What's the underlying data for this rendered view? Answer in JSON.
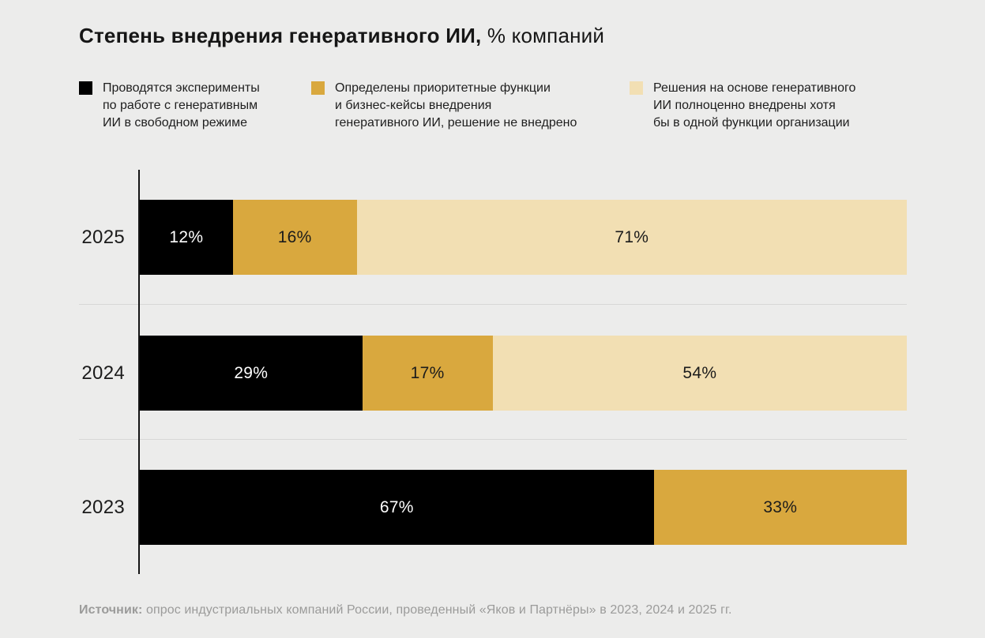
{
  "title": {
    "main": "Степень внедрения генеративного ИИ,",
    "suffix": " % компаний"
  },
  "legend": {
    "items": [
      {
        "color": "#000000",
        "lines": "Проводятся эксперименты\nпо работе с генеративным\nИИ в свободном режиме"
      },
      {
        "color": "#D9A83E",
        "lines": "Определены приоритетные функции\nи бизнес-кейсы внедрения\nгенеративного ИИ, решение не внедрено"
      },
      {
        "color": "#F2DFB3",
        "lines": "Решения на основе генеративного\nИИ полноценно внедрены хотя\nбы в одной функции организации"
      }
    ]
  },
  "chart_data": {
    "type": "bar",
    "orientation": "horizontal",
    "stacked": true,
    "unit": "%",
    "title": "Степень внедрения генеративного ИИ, % компаний",
    "categories": [
      "2025",
      "2024",
      "2023"
    ],
    "series": [
      {
        "name": "Проводятся эксперименты по работе с генеративным ИИ в свободном режиме",
        "color": "#000000",
        "label_color": "#FFFFFF",
        "values": [
          12,
          29,
          67
        ]
      },
      {
        "name": "Определены приоритетные функции и бизнес-кейсы внедрения генеративного ИИ, решение не внедрено",
        "color": "#D9A83E",
        "label_color": "#1B1B1B",
        "values": [
          16,
          17,
          33
        ]
      },
      {
        "name": "Решения на основе генеративного ИИ полноценно внедрены хотя бы в одной функции организации",
        "color": "#F2DFB3",
        "label_color": "#1B1B1B",
        "values": [
          71,
          54,
          0
        ]
      }
    ],
    "value_labels": [
      [
        "12%",
        "16%",
        "71%"
      ],
      [
        "29%",
        "17%",
        "54%"
      ],
      [
        "67%",
        "33%",
        ""
      ]
    ],
    "legend_position": "top",
    "grid": "row-separators-only",
    "axis": "single-vertical-baseline-left"
  },
  "source": {
    "prefix": "Источник:",
    "text": " опрос индустриальных компаний России, проведенный «Яков и Партнёры» в 2023, 2024 и 2025 гг."
  },
  "colors": {
    "background": "#ECECEB",
    "separator": "#D7D7D6",
    "axis": "#141414",
    "title_text": "#161616",
    "source_text": "#9B9B9A"
  }
}
